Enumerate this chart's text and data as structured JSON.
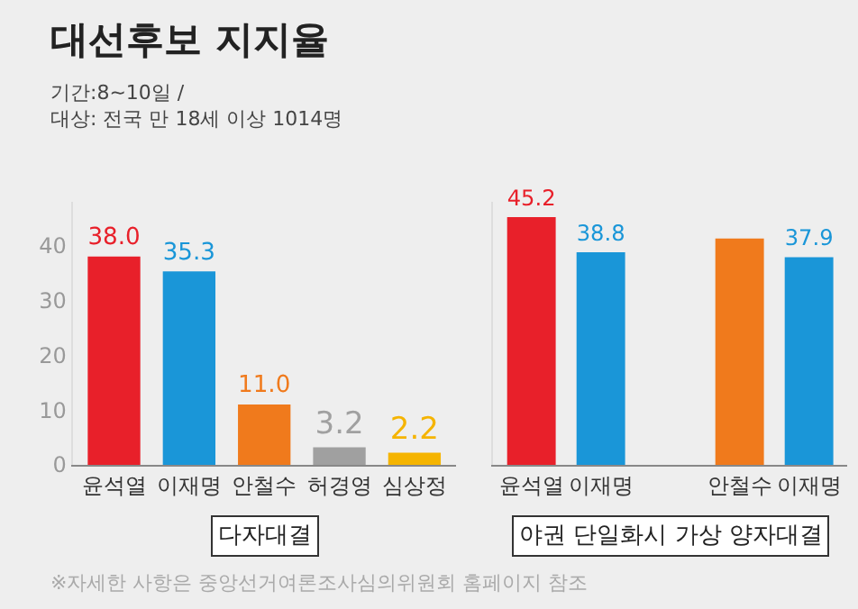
{
  "chart_data": [
    {
      "type": "bar",
      "title": "대선후보 지지율",
      "subtitle": "기간:8~10일 /\n대상: 전국 만 18세 이상 1014명",
      "xlabel": "다자대결",
      "categories": [
        "윤석열",
        "이재명",
        "안철수",
        "허경영",
        "심상정"
      ],
      "values": [
        38.0,
        35.3,
        11.0,
        3.2,
        2.2
      ],
      "colors": [
        "#e8202a",
        "#1a96d8",
        "#f07a1c",
        "#a0a0a0",
        "#f5b400"
      ],
      "value_labels": [
        "38.0",
        "35.3",
        "11.0",
        "3.2",
        "2.2"
      ],
      "ylim": [
        0,
        48
      ],
      "yticks": [
        0,
        10,
        20,
        30,
        40
      ],
      "grid": false
    },
    {
      "type": "bar",
      "xlabel": "야권 단일화시 가상 양자대결",
      "categories": [
        "윤석열",
        "이재명",
        null,
        "안철수",
        "이재명"
      ],
      "values": [
        45.2,
        38.8,
        null,
        41.3,
        37.9
      ],
      "colors": [
        "#e8202a",
        "#1a96d8",
        "#1a96d8",
        "#f07a1c",
        "#1a96d8"
      ],
      "value_labels": [
        "45.2",
        "38.8",
        null,
        null,
        "37.9"
      ],
      "ylim": [
        0,
        48
      ],
      "tick_labels": "x",
      "grid": false,
      "annotations": [
        "※자세한 사항은 중앙선거여론조사심의위원회 홈페이지 참조"
      ]
    }
  ]
}
